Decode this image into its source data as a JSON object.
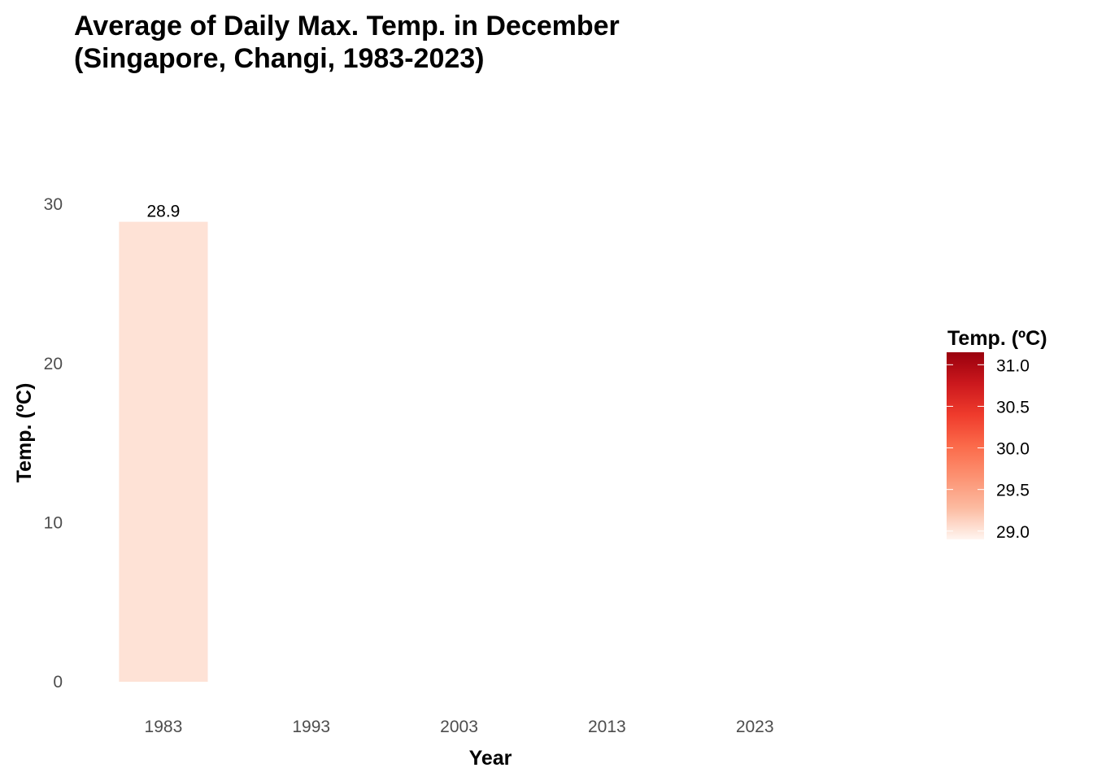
{
  "chart_data": {
    "type": "bar",
    "title_lines": [
      "Average of Daily Max. Temp. in December",
      "(Singapore, Changi, 1983-2023)"
    ],
    "xlabel": "Year",
    "ylabel": "Temp. (ºC)",
    "x": [
      1983
    ],
    "values": [
      28.9
    ],
    "value_labels": [
      "28.9"
    ],
    "x_ticks": [
      "1983",
      "1993",
      "2003",
      "2013",
      "2023"
    ],
    "x_range": [
      1978,
      2033
    ],
    "ylim": [
      0,
      32
    ],
    "y_ticks": [
      "0",
      "10",
      "20",
      "30"
    ],
    "grid": false,
    "bar_colors": [
      "#fee2d6"
    ],
    "legend": {
      "title": "Temp. (ºC)",
      "position": "right",
      "range": [
        28.9,
        31.15
      ],
      "ticks": [
        "29.0",
        "29.5",
        "30.0",
        "30.5",
        "31.0"
      ],
      "colors": [
        "#fff5f0",
        "#fcbba1",
        "#fc9272",
        "#fb6a4a",
        "#ef3b2c",
        "#cb181d",
        "#99000d"
      ]
    }
  }
}
